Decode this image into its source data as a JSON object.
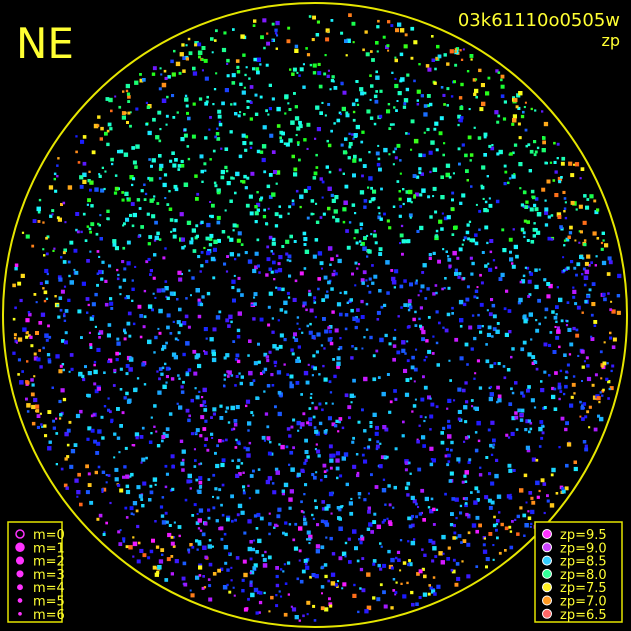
{
  "header": {
    "corner": "NE",
    "frame_id": "03k61110o0505w",
    "mode": "zp"
  },
  "legend_m": {
    "entries": [
      "m=0",
      "m=1",
      "m=2",
      "m=3",
      "m=4",
      "m=5",
      "m=6"
    ]
  },
  "legend_zp": {
    "entries": [
      "zp=9.5",
      "zp=9.0",
      "zp=8.5",
      "zp=8.0",
      "zp=7.5",
      "zp=7.0",
      "zp=6.5"
    ]
  }
}
